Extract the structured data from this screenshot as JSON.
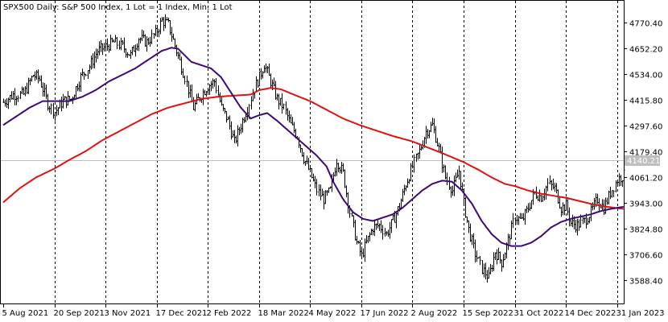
{
  "chart_data": {
    "type": "bar",
    "subtype": "ohlc-daily-with-moving-averages",
    "title": "SPX500 Daily:  S&P 500 Index, 1 Lot = 1 Index, Min: 1 Lot",
    "ylim": [
      3500,
      4870
    ],
    "y_ticks": [
      {
        "value": 4770.4,
        "label": "4770.40"
      },
      {
        "value": 4652.2,
        "label": "4652.20"
      },
      {
        "value": 4534.0,
        "label": "4534.00"
      },
      {
        "value": 4415.8,
        "label": "4415.80"
      },
      {
        "value": 4297.6,
        "label": "4297.60"
      },
      {
        "value": 4179.4,
        "label": "4179.40"
      },
      {
        "value": 4061.2,
        "label": "4061.20"
      },
      {
        "value": 3943.0,
        "label": "3943.00"
      },
      {
        "value": 3824.8,
        "label": "3824.80"
      },
      {
        "value": 3706.6,
        "label": "3706.60"
      },
      {
        "value": 3588.4,
        "label": "3588.40"
      }
    ],
    "current_price": {
      "value": 4140.21,
      "label": "4140.21"
    },
    "x_ticks": [
      {
        "label": "5 Aug 2021",
        "index": 0
      },
      {
        "label": "20 Sep 2021",
        "index": 31
      },
      {
        "label": "3 Nov 2021",
        "index": 62
      },
      {
        "label": "17 Dec 2021",
        "index": 93
      },
      {
        "label": "2 Feb 2022",
        "index": 124
      },
      {
        "label": "18 Mar 2022",
        "index": 155
      },
      {
        "label": "4 May 2022",
        "index": 186
      },
      {
        "label": "17 Jun 2022",
        "index": 217
      },
      {
        "label": "2 Aug 2022",
        "index": 248
      },
      {
        "label": "15 Sep 2022",
        "index": 279
      },
      {
        "label": "31 Oct 2022",
        "index": 310
      },
      {
        "label": "14 Dec 2022",
        "index": 341
      },
      {
        "label": "31 Jan 2023",
        "index": 372
      }
    ],
    "price_anchors": [
      [
        0,
        4405
      ],
      [
        6,
        4440
      ],
      [
        12,
        4440
      ],
      [
        18,
        4530
      ],
      [
        22,
        4510
      ],
      [
        27,
        4400
      ],
      [
        31,
        4360
      ],
      [
        36,
        4410
      ],
      [
        41,
        4420
      ],
      [
        47,
        4520
      ],
      [
        52,
        4570
      ],
      [
        57,
        4640
      ],
      [
        62,
        4660
      ],
      [
        67,
        4680
      ],
      [
        72,
        4660
      ],
      [
        77,
        4620
      ],
      [
        82,
        4700
      ],
      [
        87,
        4680
      ],
      [
        92,
        4720
      ],
      [
        96,
        4780
      ],
      [
        100,
        4760
      ],
      [
        105,
        4640
      ],
      [
        110,
        4520
      ],
      [
        115,
        4380
      ],
      [
        120,
        4440
      ],
      [
        124,
        4480
      ],
      [
        128,
        4500
      ],
      [
        132,
        4380
      ],
      [
        136,
        4320
      ],
      [
        140,
        4220
      ],
      [
        144,
        4300
      ],
      [
        148,
        4380
      ],
      [
        152,
        4470
      ],
      [
        155,
        4520
      ],
      [
        158,
        4580
      ],
      [
        162,
        4500
      ],
      [
        166,
        4420
      ],
      [
        170,
        4380
      ],
      [
        174,
        4300
      ],
      [
        178,
        4250
      ],
      [
        182,
        4150
      ],
      [
        186,
        4080
      ],
      [
        190,
        4000
      ],
      [
        194,
        3960
      ],
      [
        198,
        4000
      ],
      [
        202,
        4140
      ],
      [
        206,
        4080
      ],
      [
        210,
        3900
      ],
      [
        214,
        3760
      ],
      [
        217,
        3700
      ],
      [
        220,
        3760
      ],
      [
        224,
        3830
      ],
      [
        228,
        3840
      ],
      [
        232,
        3800
      ],
      [
        236,
        3860
      ],
      [
        240,
        3930
      ],
      [
        244,
        4030
      ],
      [
        248,
        4110
      ],
      [
        252,
        4180
      ],
      [
        256,
        4270
      ],
      [
        260,
        4300
      ],
      [
        264,
        4190
      ],
      [
        268,
        4060
      ],
      [
        272,
        4000
      ],
      [
        276,
        4090
      ],
      [
        279,
        3940
      ],
      [
        282,
        3820
      ],
      [
        286,
        3710
      ],
      [
        290,
        3640
      ],
      [
        294,
        3600
      ],
      [
        298,
        3720
      ],
      [
        302,
        3670
      ],
      [
        306,
        3770
      ],
      [
        310,
        3880
      ],
      [
        314,
        3860
      ],
      [
        318,
        3920
      ],
      [
        322,
        3990
      ],
      [
        326,
        3970
      ],
      [
        330,
        4030
      ],
      [
        334,
        4010
      ],
      [
        338,
        3920
      ],
      [
        341,
        3930
      ],
      [
        344,
        3850
      ],
      [
        348,
        3840
      ],
      [
        352,
        3860
      ],
      [
        356,
        3900
      ],
      [
        360,
        3960
      ],
      [
        364,
        3920
      ],
      [
        368,
        3990
      ],
      [
        372,
        4050
      ],
      [
        376,
        4070
      ]
    ],
    "fast_ma_anchors": [
      [
        0,
        4300
      ],
      [
        8,
        4340
      ],
      [
        16,
        4380
      ],
      [
        24,
        4410
      ],
      [
        31,
        4410
      ],
      [
        40,
        4410
      ],
      [
        48,
        4430
      ],
      [
        56,
        4460
      ],
      [
        64,
        4500
      ],
      [
        72,
        4530
      ],
      [
        80,
        4560
      ],
      [
        88,
        4600
      ],
      [
        96,
        4640
      ],
      [
        102,
        4655
      ],
      [
        106,
        4650
      ],
      [
        110,
        4620
      ],
      [
        114,
        4590
      ],
      [
        120,
        4575
      ],
      [
        126,
        4560
      ],
      [
        132,
        4520
      ],
      [
        138,
        4450
      ],
      [
        144,
        4380
      ],
      [
        150,
        4330
      ],
      [
        155,
        4345
      ],
      [
        160,
        4355
      ],
      [
        166,
        4320
      ],
      [
        172,
        4280
      ],
      [
        178,
        4240
      ],
      [
        184,
        4200
      ],
      [
        190,
        4160
      ],
      [
        196,
        4110
      ],
      [
        200,
        4040
      ],
      [
        206,
        3960
      ],
      [
        212,
        3900
      ],
      [
        218,
        3870
      ],
      [
        224,
        3860
      ],
      [
        230,
        3875
      ],
      [
        236,
        3890
      ],
      [
        242,
        3920
      ],
      [
        248,
        3960
      ],
      [
        254,
        4000
      ],
      [
        260,
        4030
      ],
      [
        266,
        4045
      ],
      [
        272,
        4040
      ],
      [
        278,
        4000
      ],
      [
        284,
        3940
      ],
      [
        290,
        3860
      ],
      [
        296,
        3800
      ],
      [
        302,
        3760
      ],
      [
        308,
        3745
      ],
      [
        314,
        3745
      ],
      [
        320,
        3760
      ],
      [
        326,
        3790
      ],
      [
        332,
        3830
      ],
      [
        338,
        3855
      ],
      [
        344,
        3870
      ],
      [
        350,
        3880
      ],
      [
        356,
        3890
      ],
      [
        362,
        3905
      ],
      [
        368,
        3915
      ],
      [
        376,
        3925
      ]
    ],
    "slow_ma_anchors": [
      [
        0,
        3945
      ],
      [
        10,
        4010
      ],
      [
        20,
        4060
      ],
      [
        31,
        4100
      ],
      [
        40,
        4140
      ],
      [
        50,
        4180
      ],
      [
        60,
        4230
      ],
      [
        70,
        4270
      ],
      [
        80,
        4310
      ],
      [
        90,
        4350
      ],
      [
        100,
        4380
      ],
      [
        110,
        4400
      ],
      [
        120,
        4420
      ],
      [
        130,
        4430
      ],
      [
        140,
        4435
      ],
      [
        150,
        4440
      ],
      [
        155,
        4460
      ],
      [
        162,
        4470
      ],
      [
        168,
        4465
      ],
      [
        176,
        4440
      ],
      [
        186,
        4410
      ],
      [
        196,
        4370
      ],
      [
        206,
        4330
      ],
      [
        216,
        4300
      ],
      [
        226,
        4275
      ],
      [
        236,
        4250
      ],
      [
        248,
        4225
      ],
      [
        258,
        4195
      ],
      [
        268,
        4165
      ],
      [
        279,
        4130
      ],
      [
        288,
        4095
      ],
      [
        296,
        4060
      ],
      [
        304,
        4030
      ],
      [
        310,
        4020
      ],
      [
        318,
        4000
      ],
      [
        326,
        3985
      ],
      [
        334,
        3975
      ],
      [
        342,
        3965
      ],
      [
        350,
        3950
      ],
      [
        358,
        3935
      ],
      [
        366,
        3925
      ],
      [
        376,
        3915
      ]
    ],
    "bar_count": 377,
    "colors": {
      "bars": "#000000",
      "fast_ma": "#3c0a78",
      "slow_ma": "#e41010",
      "grid": "#000000",
      "current_price_line": "#bfbfbf",
      "current_price_tag": "#bfbfbf",
      "background": "#ffffff"
    },
    "grid": true
  }
}
